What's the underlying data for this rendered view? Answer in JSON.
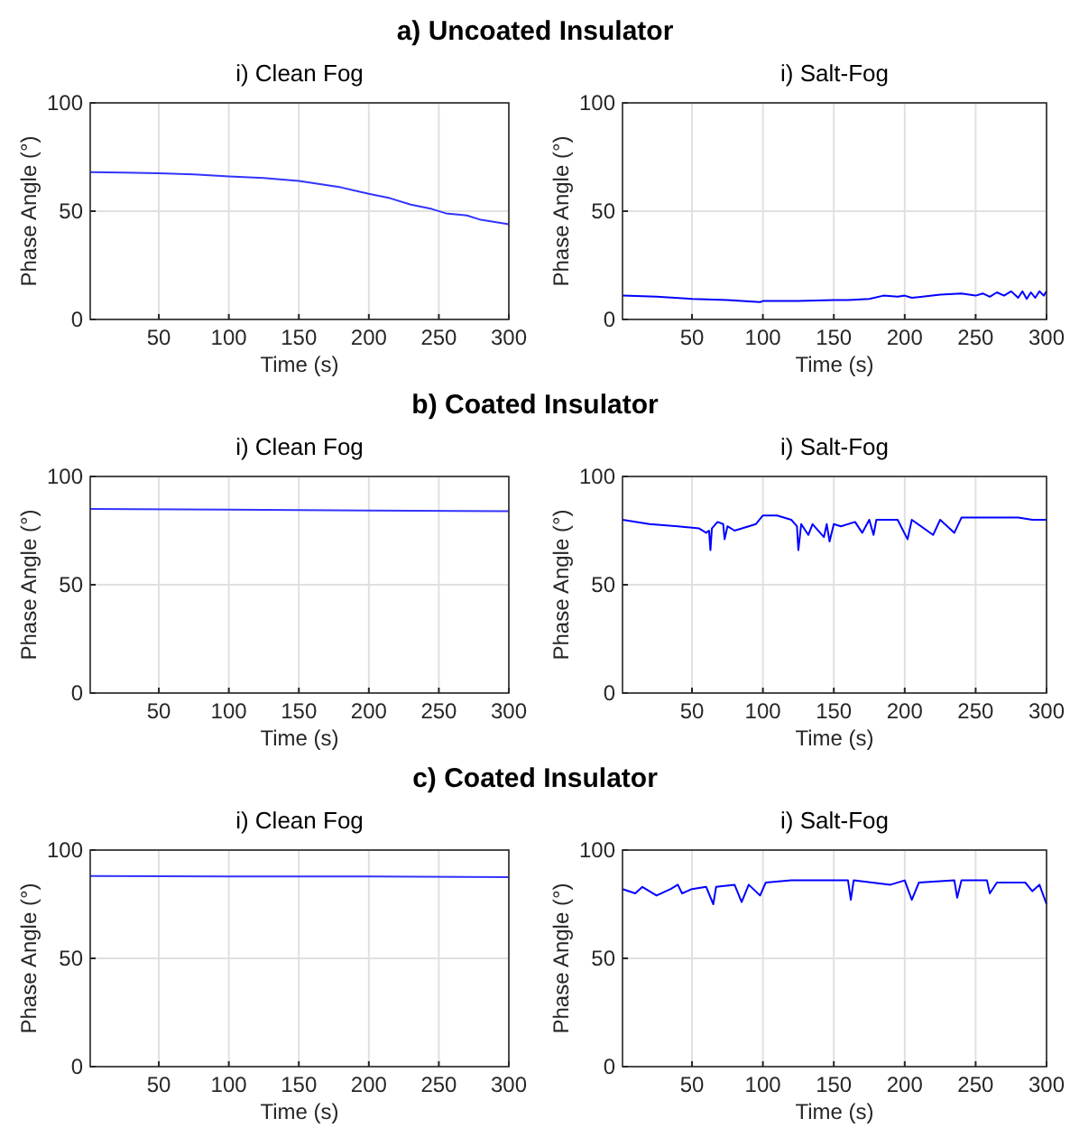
{
  "chart_data": [
    {
      "type": "line",
      "title": "i) Clean Fog",
      "annotations": [
        "a) Uncoated Insulator"
      ],
      "xlabel": "Time (s)",
      "ylabel": "Phase Angle (°)",
      "xlim": [
        1,
        300
      ],
      "ylim": [
        0,
        100
      ],
      "xticks": [
        50,
        100,
        150,
        200,
        250,
        300
      ],
      "yticks": [
        0,
        50,
        100
      ],
      "grid": true,
      "x": [
        1,
        25,
        50,
        75,
        100,
        125,
        150,
        165,
        180,
        190,
        200,
        215,
        230,
        245,
        255,
        270,
        280,
        290,
        300
      ],
      "series": [
        {
          "color": "#3333ff",
          "values": [
            68,
            67.8,
            67.5,
            67,
            66,
            65.3,
            64,
            62.5,
            61,
            59.5,
            58,
            56,
            53,
            51,
            49,
            48,
            46,
            45,
            44
          ]
        }
      ]
    },
    {
      "type": "line",
      "title": "i) Salt-Fog",
      "xlabel": "Time (s)",
      "ylabel": "Phase Angle (°)",
      "xlim": [
        1,
        300
      ],
      "ylim": [
        0,
        100
      ],
      "xticks": [
        50,
        100,
        150,
        200,
        250,
        300
      ],
      "yticks": [
        0,
        50,
        100
      ],
      "grid": true,
      "x": [
        1,
        25,
        50,
        75,
        98,
        100,
        125,
        150,
        160,
        175,
        185,
        195,
        200,
        205,
        225,
        240,
        250,
        255,
        260,
        265,
        270,
        275,
        280,
        283,
        286,
        289,
        292,
        295,
        298,
        300
      ],
      "series": [
        {
          "color": "#0000ff",
          "values": [
            11,
            10.5,
            9.5,
            9,
            8,
            8.5,
            8.5,
            9,
            9,
            9.5,
            11,
            10.5,
            11,
            10,
            11.5,
            12,
            11,
            12,
            10.5,
            12.5,
            11,
            13,
            10,
            13,
            9.5,
            12.5,
            10,
            13,
            11,
            13
          ]
        }
      ]
    },
    {
      "type": "line",
      "title": "i) Clean Fog",
      "annotations": [
        "b) Coated Insulator"
      ],
      "xlabel": "Time (s)",
      "ylabel": "Phase Angle (°)",
      "xlim": [
        1,
        300
      ],
      "ylim": [
        0,
        100
      ],
      "xticks": [
        50,
        100,
        150,
        200,
        250,
        300
      ],
      "yticks": [
        0,
        50,
        100
      ],
      "grid": true,
      "x": [
        1,
        100,
        200,
        300
      ],
      "series": [
        {
          "color": "#3333ff",
          "values": [
            85,
            84.7,
            84.3,
            84
          ]
        }
      ]
    },
    {
      "type": "line",
      "title": "i) Salt-Fog",
      "xlabel": "Time (s)",
      "ylabel": "Phase Angle (°)",
      "xlim": [
        1,
        300
      ],
      "ylim": [
        0,
        100
      ],
      "xticks": [
        50,
        100,
        150,
        200,
        250,
        300
      ],
      "yticks": [
        0,
        50,
        100
      ],
      "grid": true,
      "x": [
        1,
        20,
        40,
        55,
        60,
        62,
        63,
        64,
        68,
        72,
        73,
        75,
        80,
        90,
        95,
        100,
        110,
        120,
        124,
        125,
        127,
        132,
        135,
        143,
        145,
        147,
        150,
        155,
        165,
        170,
        175,
        178,
        180,
        195,
        202,
        205,
        220,
        225,
        235,
        240,
        280,
        290,
        300
      ],
      "series": [
        {
          "color": "#0000ff",
          "values": [
            80,
            78,
            77,
            76,
            74,
            75,
            66,
            76,
            79,
            78,
            71,
            77,
            75,
            77,
            78,
            82,
            82,
            80,
            77,
            66,
            78,
            73,
            78,
            72,
            78,
            70,
            78,
            77,
            79,
            74,
            80,
            73,
            80,
            80,
            71,
            80,
            73,
            80,
            74,
            81,
            81,
            80,
            80
          ]
        }
      ]
    },
    {
      "type": "line",
      "title": "i) Clean Fog",
      "annotations": [
        "c) Coated Insulator"
      ],
      "xlabel": "Time (s)",
      "ylabel": "Phase Angle (°)",
      "xlim": [
        1,
        300
      ],
      "ylim": [
        0,
        100
      ],
      "xticks": [
        50,
        100,
        150,
        200,
        250,
        300
      ],
      "yticks": [
        0,
        50,
        100
      ],
      "grid": true,
      "x": [
        1,
        100,
        200,
        300
      ],
      "series": [
        {
          "color": "#3333ff",
          "values": [
            88,
            87.8,
            87.8,
            87.5
          ]
        }
      ]
    },
    {
      "type": "line",
      "title": "i) Salt-Fog",
      "xlabel": "Time (s)",
      "ylabel": "Phase Angle (°)",
      "xlim": [
        1,
        300
      ],
      "ylim": [
        0,
        100
      ],
      "xticks": [
        50,
        100,
        150,
        200,
        250,
        300
      ],
      "yticks": [
        0,
        50,
        100
      ],
      "grid": true,
      "x": [
        1,
        10,
        15,
        25,
        35,
        40,
        43,
        50,
        60,
        65,
        67,
        80,
        85,
        90,
        98,
        102,
        120,
        160,
        162,
        164,
        190,
        200,
        205,
        210,
        235,
        237,
        240,
        258,
        260,
        265,
        285,
        290,
        295,
        300
      ],
      "series": [
        {
          "color": "#0000ff",
          "values": [
            82,
            80,
            83,
            79,
            82,
            84,
            80,
            82,
            83,
            75,
            83,
            84,
            76,
            84,
            79,
            85,
            86,
            86,
            77,
            86,
            84,
            86,
            77,
            85,
            86,
            78,
            86,
            86,
            80,
            85,
            85,
            81,
            84,
            75
          ]
        }
      ]
    }
  ]
}
